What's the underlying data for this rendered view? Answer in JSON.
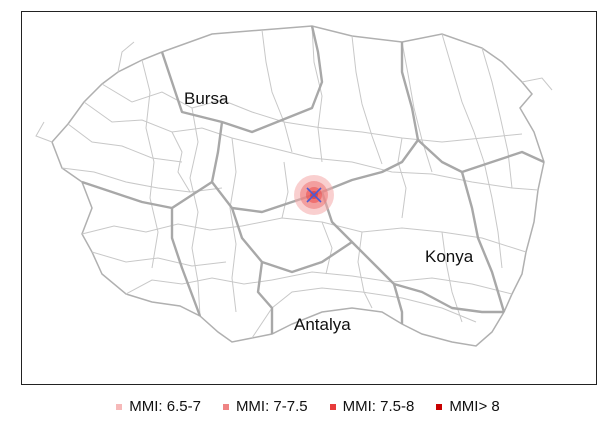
{
  "map": {
    "cities": [
      {
        "name": "Bursa"
      },
      {
        "name": "Konya"
      },
      {
        "name": "Antalya"
      }
    ],
    "epicenter_icon": "x-marker-icon",
    "intensity_colors": {
      "mmi_6_5_7": "#f4a8a8",
      "mmi_7_7_5": "#ee7777",
      "mmi_7_5_8": "#e83a3a",
      "mmi_gt_8": "#cc0000"
    },
    "boundary_color": "#b5b5b5",
    "marker_color": "#4a5bd4"
  },
  "legend": {
    "items": [
      {
        "label": "MMI: 6.5-7",
        "color": "#f6b9b9"
      },
      {
        "label": "MMI: 7-7.5",
        "color": "#ef8484"
      },
      {
        "label": "MMI: 7.5-8",
        "color": "#e73b3b"
      },
      {
        "label": "MMI> 8",
        "color": "#c80000"
      }
    ]
  }
}
